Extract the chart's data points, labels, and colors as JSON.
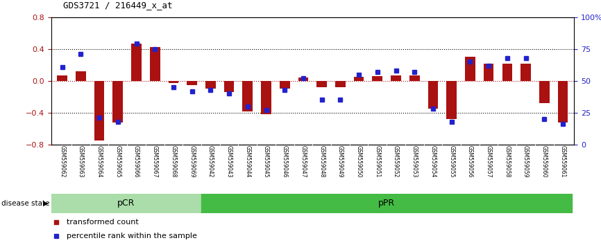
{
  "title": "GDS3721 / 216449_x_at",
  "samples": [
    "GSM559062",
    "GSM559063",
    "GSM559064",
    "GSM559065",
    "GSM559066",
    "GSM559067",
    "GSM559068",
    "GSM559069",
    "GSM559042",
    "GSM559043",
    "GSM559044",
    "GSM559045",
    "GSM559046",
    "GSM559047",
    "GSM559048",
    "GSM559049",
    "GSM559050",
    "GSM559051",
    "GSM559052",
    "GSM559053",
    "GSM559054",
    "GSM559055",
    "GSM559056",
    "GSM559057",
    "GSM559058",
    "GSM559059",
    "GSM559060",
    "GSM559061"
  ],
  "transformed_count": [
    0.07,
    0.12,
    -0.75,
    -0.52,
    0.47,
    0.42,
    -0.03,
    -0.05,
    -0.1,
    -0.14,
    -0.38,
    -0.42,
    -0.1,
    0.04,
    -0.08,
    -0.08,
    0.05,
    0.06,
    0.07,
    0.07,
    -0.35,
    -0.48,
    0.3,
    0.22,
    0.22,
    0.22,
    -0.28,
    -0.52
  ],
  "percentile_rank": [
    61,
    71,
    21,
    18,
    79,
    75,
    45,
    42,
    43,
    40,
    30,
    27,
    43,
    52,
    35,
    35,
    55,
    57,
    58,
    57,
    28,
    18,
    65,
    62,
    68,
    68,
    20,
    16
  ],
  "pCR_count": 8,
  "pPR_count": 20,
  "bar_color": "#aa1111",
  "dot_color": "#2222cc",
  "ylim": [
    -0.8,
    0.8
  ],
  "yticks_left": [
    -0.8,
    -0.4,
    0.0,
    0.4,
    0.8
  ],
  "yticks_right": [
    0,
    25,
    50,
    75,
    100
  ],
  "ytick_labels_right": [
    "0",
    "25",
    "50",
    "75",
    "100%"
  ],
  "dotted_lines": [
    -0.4,
    0.4
  ],
  "zero_line": 0.0,
  "pCR_color": "#aaddaa",
  "pPR_color": "#44bb44",
  "label_bar": "transformed count",
  "label_dot": "percentile rank within the sample",
  "disease_state_label": "disease state",
  "background_color": "#ffffff",
  "plot_bg_color": "#ffffff",
  "tick_bg_color": "#bbbbbb"
}
